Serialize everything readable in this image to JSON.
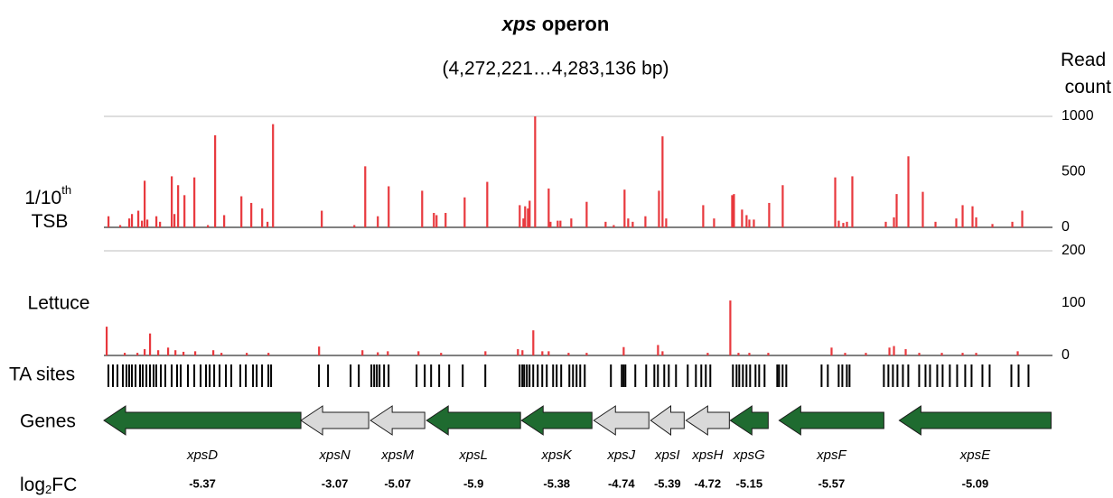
{
  "chart_data": {
    "type": "bar",
    "title": "xps operon",
    "subtitle": "(4,272,221…4,283,136 bp)",
    "y_axis_label": "Read count",
    "xlim": [
      4272221,
      4283136
    ],
    "series": [
      {
        "name": "1/10th TSB",
        "color": "#e8383d",
        "ylim": [
          0,
          1000
        ],
        "yticks": [
          0,
          500,
          1000
        ],
        "x": [
          4272273,
          4272408,
          4272512,
          4272543,
          4272616,
          4272658,
          4272689,
          4272720,
          4272824,
          4272866,
          4273001,
          4273032,
          4273074,
          4273147,
          4273261,
          4273417,
          4273500,
          4273604,
          4273802,
          4273916,
          4274041,
          4274103,
          4274166,
          4274727,
          4275102,
          4275227,
          4275372,
          4275497,
          4275882,
          4276017,
          4276048,
          4276152,
          4276371,
          4276631,
          4277005,
          4277047,
          4277067,
          4277099,
          4277119,
          4277182,
          4277338,
          4277359,
          4277442,
          4277473,
          4277598,
          4277775,
          4277993,
          4278087,
          4278211,
          4278253,
          4278305,
          4278451,
          4278607,
          4278648,
          4278690,
          4279116,
          4279241,
          4279449,
          4279470,
          4279563,
          4279615,
          4279647,
          4279699,
          4279875,
          4280031,
          4280635,
          4280676,
          4280728,
          4280770,
          4280832,
          4281217,
          4281311,
          4281342,
          4281477,
          4281643,
          4281789,
          4282028,
          4282101,
          4282215,
          4282257,
          4282444,
          4282673,
          4282787
        ],
        "values": [
          100,
          20,
          80,
          120,
          150,
          60,
          420,
          70,
          100,
          50,
          460,
          120,
          380,
          290,
          450,
          20,
          830,
          110,
          280,
          220,
          170,
          50,
          930,
          150,
          20,
          550,
          100,
          370,
          330,
          130,
          110,
          130,
          270,
          410,
          200,
          80,
          190,
          170,
          240,
          1000,
          350,
          50,
          60,
          60,
          80,
          230,
          50,
          20,
          340,
          80,
          50,
          100,
          330,
          820,
          80,
          200,
          80,
          290,
          300,
          160,
          110,
          70,
          70,
          220,
          380,
          450,
          60,
          40,
          50,
          460,
          50,
          90,
          300,
          640,
          320,
          50,
          80,
          200,
          190,
          90,
          30,
          50,
          150
        ]
      },
      {
        "name": "Lettuce",
        "color": "#e8383d",
        "ylim": [
          0,
          200
        ],
        "yticks": [
          0,
          100,
          200
        ],
        "x": [
          4272252,
          4272460,
          4272606,
          4272689,
          4272751,
          4272845,
          4272959,
          4273043,
          4273136,
          4273271,
          4273479,
          4273573,
          4273864,
          4274114,
          4274696,
          4275195,
          4275372,
          4275487,
          4275840,
          4276100,
          4276610,
          4276984,
          4277036,
          4277161,
          4277265,
          4277338,
          4277567,
          4277775,
          4278201,
          4278596,
          4278648,
          4279168,
          4279428,
          4279522,
          4279647,
          4279865,
          4280593,
          4280749,
          4280988,
          4281259,
          4281311,
          4281446,
          4281602,
          4281862,
          4282101,
          4282257,
          4282735
        ],
        "values": [
          55,
          5,
          5,
          12,
          42,
          10,
          15,
          10,
          7,
          8,
          10,
          5,
          5,
          5,
          17,
          10,
          6,
          8,
          8,
          5,
          8,
          12,
          10,
          48,
          8,
          8,
          5,
          5,
          16,
          20,
          8,
          5,
          105,
          5,
          5,
          5,
          15,
          5,
          5,
          15,
          18,
          12,
          5,
          5,
          5,
          5,
          8
        ]
      }
    ],
    "ta_sites": {
      "name": "TA sites",
      "x": [
        4272273,
        4272325,
        4272377,
        4272439,
        4272481,
        4272512,
        4272543,
        4272585,
        4272637,
        4272668,
        4272710,
        4272751,
        4272793,
        4272824,
        4272876,
        4272928,
        4273001,
        4273063,
        4273105,
        4273188,
        4273261,
        4273334,
        4273396,
        4273438,
        4273490,
        4273552,
        4273625,
        4273687,
        4273791,
        4273854,
        4273937,
        4273979,
        4274041,
        4274114,
        4274145,
        4274696,
        4274800,
        4275060,
        4275154,
        4275299,
        4275331,
        4275362,
        4275393,
        4275445,
        4275497,
        4275819,
        4275913,
        4275986,
        4276079,
        4276194,
        4276350,
        4276610,
        4277005,
        4277036,
        4277057,
        4277088,
        4277119,
        4277161,
        4277213,
        4277265,
        4277317,
        4277390,
        4277431,
        4277483,
        4277577,
        4277619,
        4277660,
        4277702,
        4277754,
        4278055,
        4278180,
        4278201,
        4278222,
        4278336,
        4278461,
        4278555,
        4278596,
        4278669,
        4278721,
        4278804,
        4278939,
        4279033,
        4279095,
        4279147,
        4279199,
        4279459,
        4279501,
        4279532,
        4279574,
        4279615,
        4279657,
        4279719,
        4279761,
        4279823,
        4279969,
        4279990,
        4280031,
        4280073,
        4280479,
        4280551,
        4280676,
        4280718,
        4280770,
        4280801,
        4281196,
        4281248,
        4281300,
        4281352,
        4281415,
        4281477,
        4281602,
        4281675,
        4281727,
        4281810,
        4281872,
        4281955,
        4282039,
        4282132,
        4282205,
        4282330,
        4282413,
        4282663,
        4282746,
        4282860
      ]
    },
    "genes": {
      "name": "Genes",
      "fc_label": "log2FC",
      "names": [
        "xpsD",
        "xpsN",
        "xpsM",
        "xpsL",
        "xpsK",
        "xpsJ",
        "xpsI",
        "xpsH",
        "xpsG",
        "xpsF",
        "xpsE"
      ],
      "start": [
        4272221,
        4274488,
        4275289,
        4275934,
        4277026,
        4277858,
        4278513,
        4278919,
        4279428,
        4279990,
        4281373
      ],
      "end": [
        4274488,
        4275268,
        4275913,
        4277015,
        4277837,
        4278492,
        4278898,
        4279418,
        4279865,
        4281196,
        4283120
      ],
      "colors": [
        "#1f6b30",
        "#d9d9d9",
        "#d9d9d9",
        "#1f6b30",
        "#1f6b30",
        "#d9d9d9",
        "#d9d9d9",
        "#d9d9d9",
        "#1f6b30",
        "#1f6b30",
        "#1f6b30"
      ],
      "log2fc": [
        -5.37,
        -3.07,
        -5.07,
        -5.9,
        -5.38,
        -4.74,
        -5.39,
        -4.72,
        -5.15,
        -5.57,
        -5.09
      ]
    }
  }
}
